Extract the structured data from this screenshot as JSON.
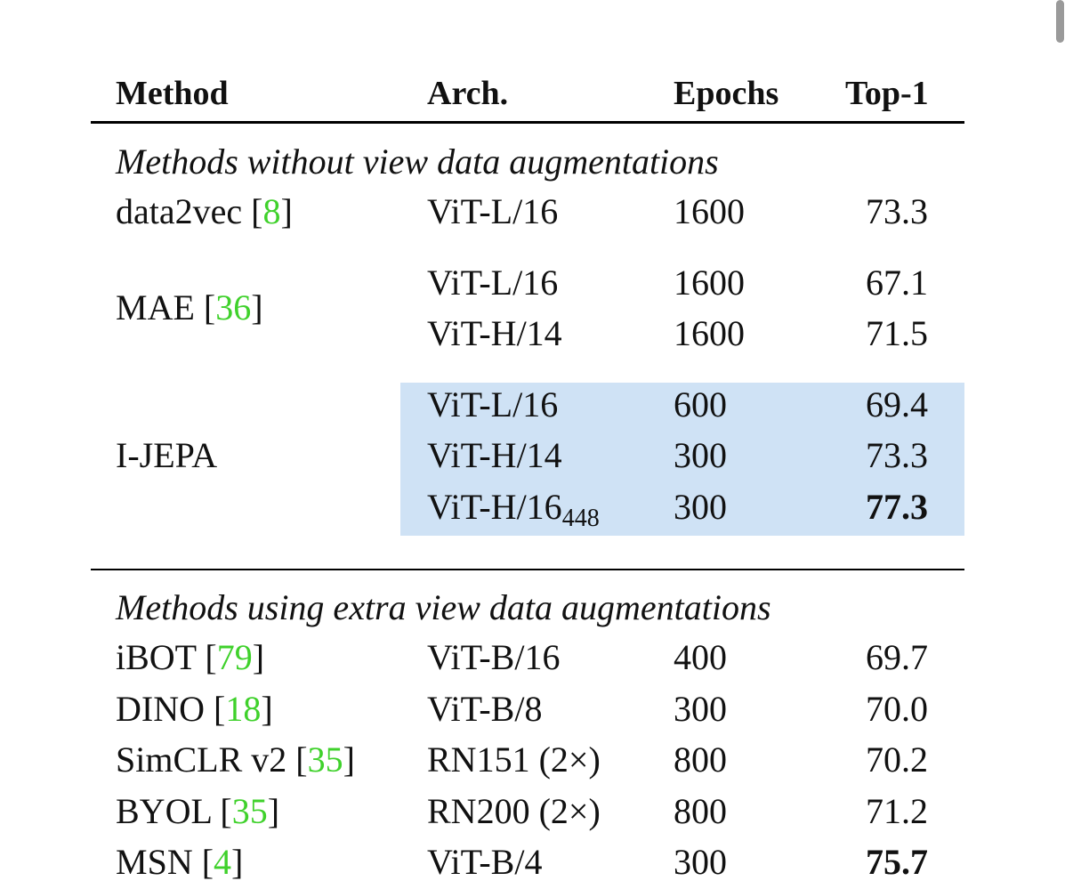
{
  "header": [
    "Method",
    "Arch.",
    "Epochs",
    "Top-1"
  ],
  "sections": [
    {
      "title": "Methods without view data augmentations",
      "groups": [
        {
          "method": "data2vec",
          "cite": "[8]",
          "rows": [
            {
              "arch": "ViT-L/16",
              "epochs": "1600",
              "top1": "73.3"
            }
          ]
        },
        {
          "method": "MAE",
          "cite": "[36]",
          "rows": [
            {
              "arch": "ViT-L/16",
              "epochs": "1600",
              "top1": "67.1"
            },
            {
              "arch": "ViT-H/14",
              "epochs": "1600",
              "top1": "71.5"
            }
          ]
        },
        {
          "method": "I-JEPA",
          "highlight": true,
          "rows": [
            {
              "arch": "ViT-L/16",
              "epochs": "600",
              "top1": "69.4"
            },
            {
              "arch": "ViT-H/14",
              "epochs": "300",
              "top1": "73.3"
            },
            {
              "arch": "ViT-H/16",
              "arch_sub": "448",
              "epochs": "300",
              "top1": "77.3",
              "best": true
            }
          ]
        }
      ]
    },
    {
      "title": "Methods using extra view data augmentations",
      "groups": [
        {
          "method": "iBOT",
          "cite": "[79]",
          "rows": [
            {
              "arch": "ViT-B/16",
              "epochs": "400",
              "top1": "69.7"
            }
          ]
        },
        {
          "method": "DINO",
          "cite": "[18]",
          "rows": [
            {
              "arch": "ViT-B/8",
              "epochs": "300",
              "top1": "70.0"
            }
          ]
        },
        {
          "method": "SimCLR v2",
          "cite": "[35]",
          "rows": [
            {
              "arch": "RN151 (2×)",
              "epochs": "800",
              "top1": "70.2"
            }
          ]
        },
        {
          "method": "BYOL",
          "cite": "[35]",
          "rows": [
            {
              "arch": "RN200 (2×)",
              "epochs": "800",
              "top1": "71.2"
            }
          ]
        },
        {
          "method": "MSN",
          "cite": "[4]",
          "rows": [
            {
              "arch": "ViT-B/4",
              "epochs": "300",
              "top1": "75.7",
              "best": true
            }
          ]
        }
      ]
    }
  ]
}
